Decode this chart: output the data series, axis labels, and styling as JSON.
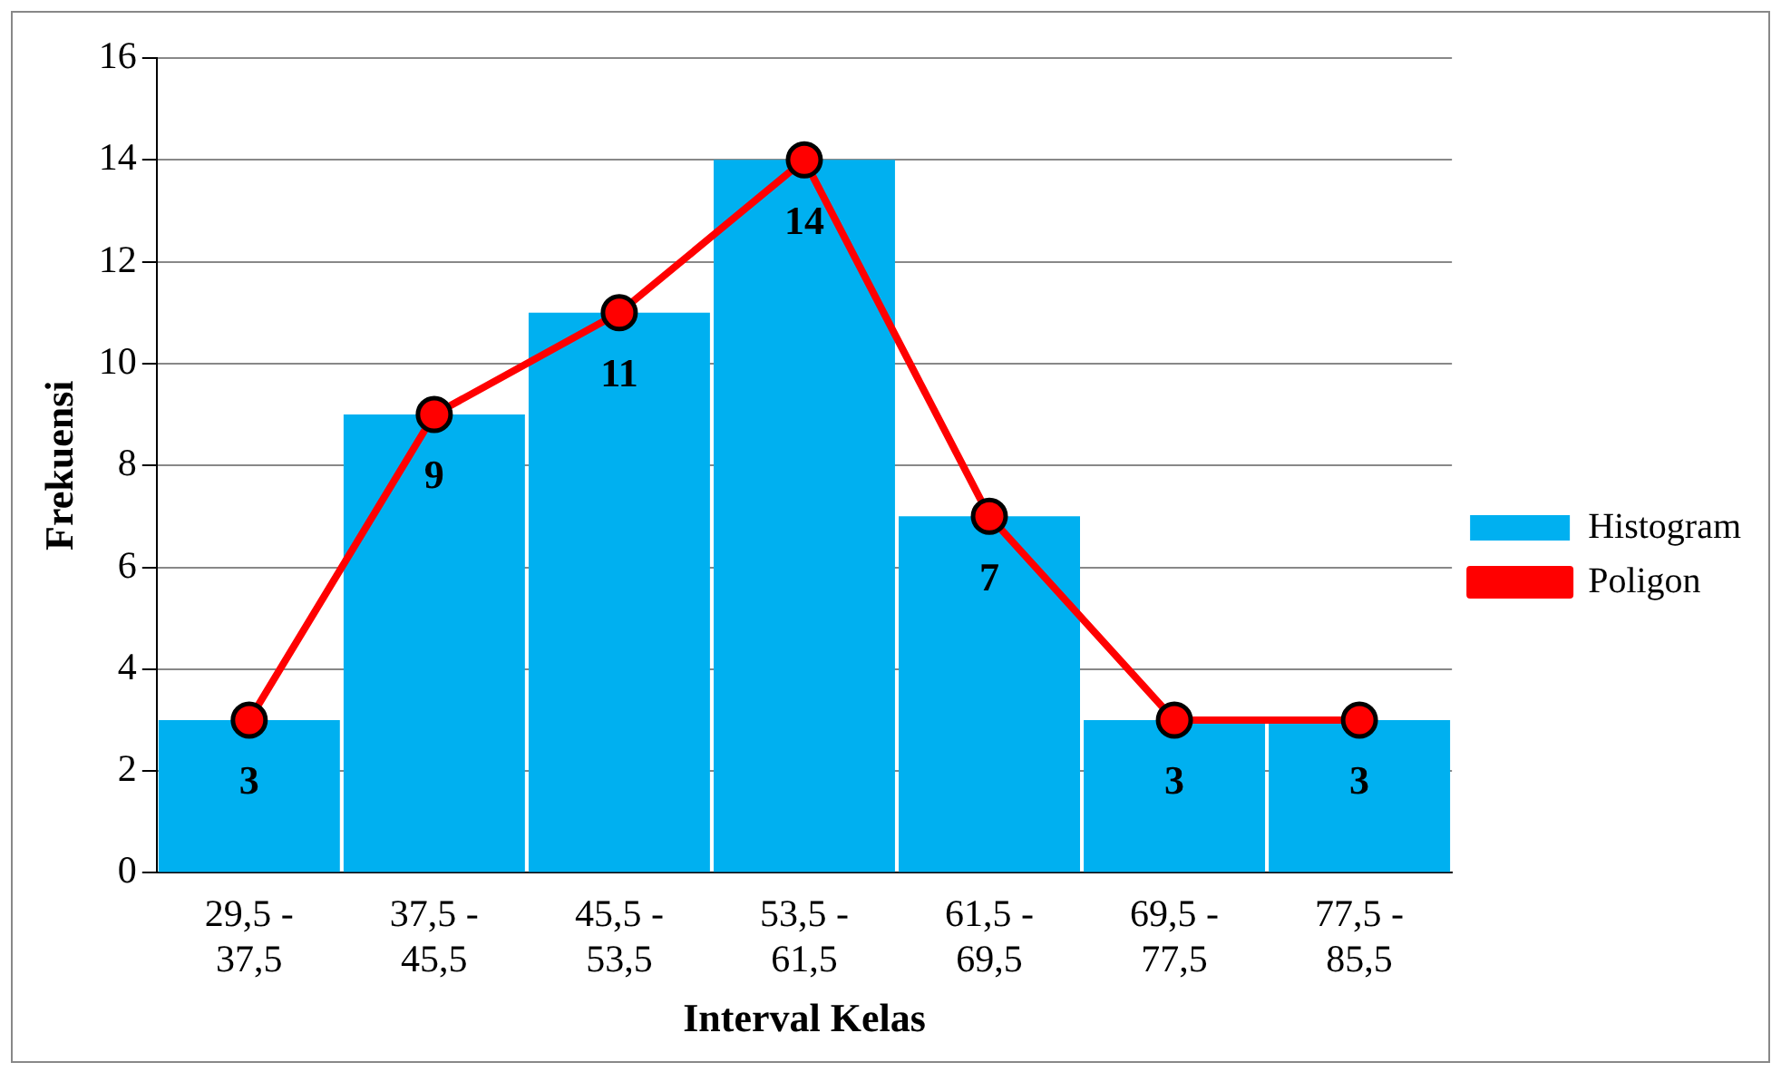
{
  "chart_data": {
    "type": "bar",
    "xlabel": "Interval Kelas",
    "ylabel": "Frekuensi",
    "categories": [
      "29,5 - 37,5",
      "37,5 - 45,5",
      "45,5 - 53,5",
      "53,5 - 61,5",
      "61,5 - 69,5",
      "69,5 - 77,5",
      "77,5 - 85,5"
    ],
    "series": [
      {
        "name": "Histogram",
        "color": "#00b0f0",
        "values": [
          3,
          9,
          11,
          14,
          7,
          3,
          3
        ],
        "value_labels": [
          "3",
          "9",
          "11",
          "14",
          "7",
          "3",
          "3"
        ]
      },
      {
        "name": "Poligon",
        "type": "line",
        "color": "#ff0000",
        "values": [
          3,
          9,
          11,
          14,
          7,
          3,
          3
        ]
      }
    ],
    "ylim": [
      0,
      16
    ],
    "yticks": [
      0,
      2,
      4,
      6,
      8,
      10,
      12,
      14,
      16
    ],
    "grid": "y",
    "legend": "right",
    "marker": "circle",
    "line_style": "solid"
  }
}
